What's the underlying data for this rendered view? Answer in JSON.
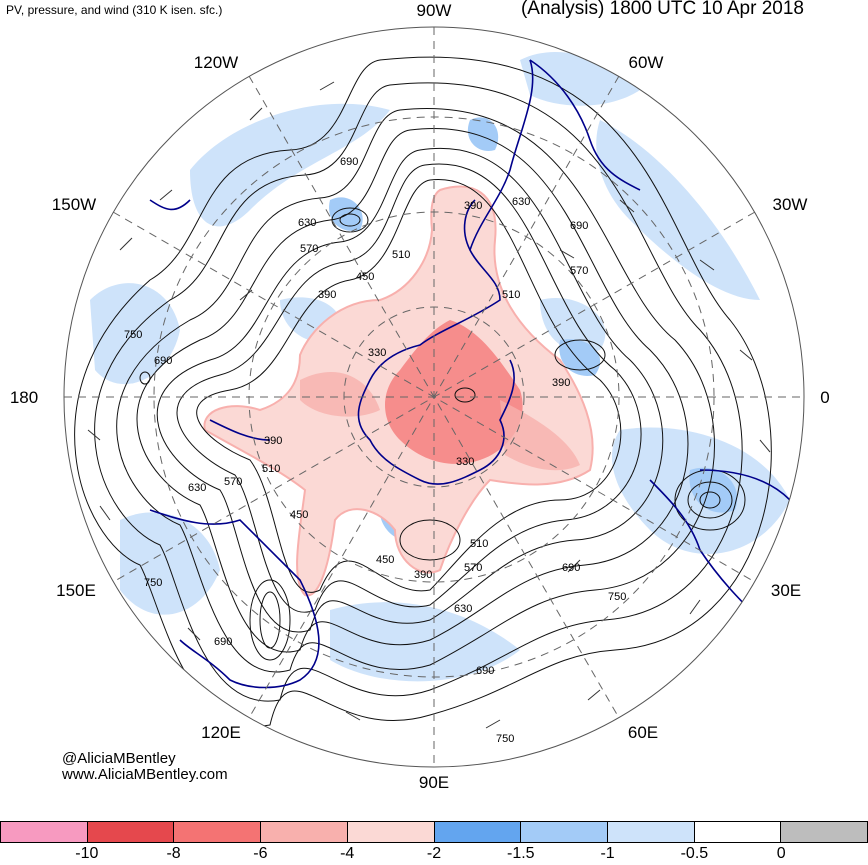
{
  "header": {
    "left_title": "PV, pressure, and wind (310 K isen. sfc.)",
    "right_title": "(Analysis) 1800 UTC 10 Apr 2018"
  },
  "credits": {
    "handle": "@AliciaMBentley",
    "website": "www.AliciaMBentley.com"
  },
  "longitude_labels": {
    "w90": "90W",
    "w60": "60W",
    "w30": "30W",
    "zero": "0",
    "e30": "30E",
    "e60": "60E",
    "e90": "90E",
    "e120": "120E",
    "e150": "150E",
    "dateline": "180",
    "w150": "150W",
    "w120": "120W"
  },
  "contour_labels": [
    "690",
    "630",
    "570",
    "510",
    "450",
    "390",
    "330",
    "630",
    "690",
    "570",
    "510",
    "390",
    "750",
    "690",
    "390",
    "510",
    "570",
    "630",
    "450",
    "390",
    "330",
    "450",
    "390",
    "570",
    "510",
    "690",
    "750",
    "630",
    "690",
    "750",
    "690",
    "750"
  ],
  "colorbar": {
    "colors": [
      "#f79ac0",
      "#e5484d",
      "#f47373",
      "#f8b0ad",
      "#fbd9d5",
      "#63a5ef",
      "#a3cbf7",
      "#cee3fa",
      "#ffffff",
      "#bdbdbd"
    ],
    "labels": [
      "-10",
      "-8",
      "-6",
      "-4",
      "-2",
      "-1.5",
      "-1",
      "-0.5",
      "0"
    ]
  }
}
